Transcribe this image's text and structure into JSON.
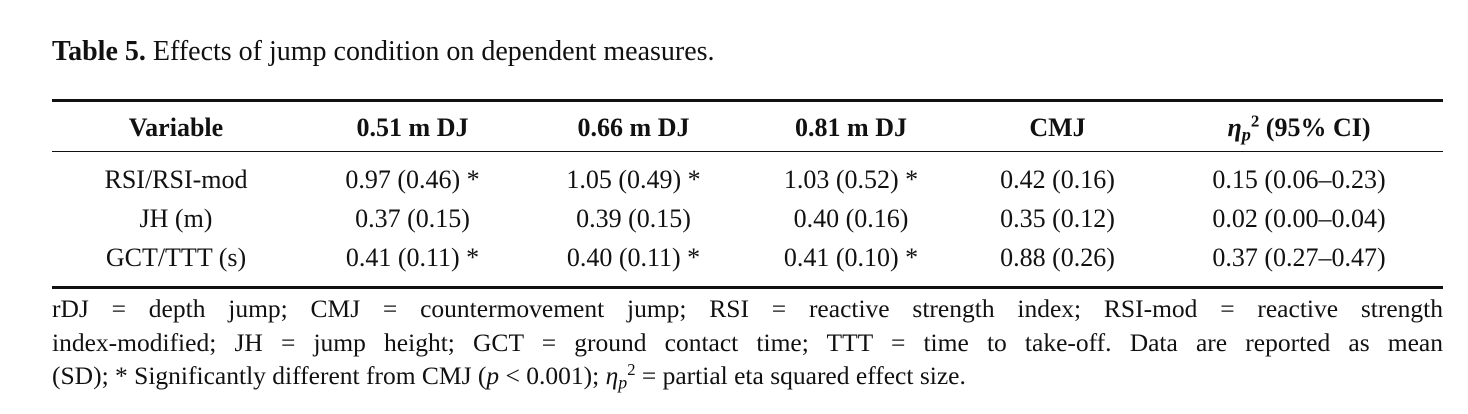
{
  "caption": {
    "label": "Table 5.",
    "text": " Effects of jump condition on dependent measures."
  },
  "table": {
    "headers": [
      "Variable",
      "0.51 m DJ",
      "0.66 m DJ",
      "0.81 m DJ",
      "CMJ"
    ],
    "eta_header": {
      "symbol": "η",
      "sub": "p",
      "sup": "2",
      "rest": " (95% CI)"
    },
    "rows": [
      [
        "RSI/RSI-mod",
        "0.97 (0.46) *",
        "1.05 (0.49) *",
        "1.03 (0.52) *",
        "0.42 (0.16)",
        "0.15 (0.06–0.23)"
      ],
      [
        "JH (m)",
        "0.37 (0.15)",
        "0.39 (0.15)",
        "0.40 (0.16)",
        "0.35 (0.12)",
        "0.02 (0.00–0.04)"
      ],
      [
        "GCT/TTT (s)",
        "0.41 (0.11) *",
        "0.40 (0.11) *",
        "0.41 (0.10) *",
        "0.88 (0.26)",
        "0.37 (0.27–0.47)"
      ]
    ]
  },
  "footnote": {
    "line1": "rDJ = depth jump; CMJ = countermovement jump; RSI = reactive strength index; RSI-mod = reactive strength",
    "line2": "index-modified; JH = jump height; GCT = ground contact time; TTT = time to take-off. Data are reported as mean",
    "line3a": "(SD); * Significantly different from CMJ (",
    "line3p": "p",
    "line3b": " < 0.001); ",
    "eta": "η",
    "eta_sub": "p",
    "eta_sup": "2",
    "line3c": " = partial eta squared effect size."
  }
}
